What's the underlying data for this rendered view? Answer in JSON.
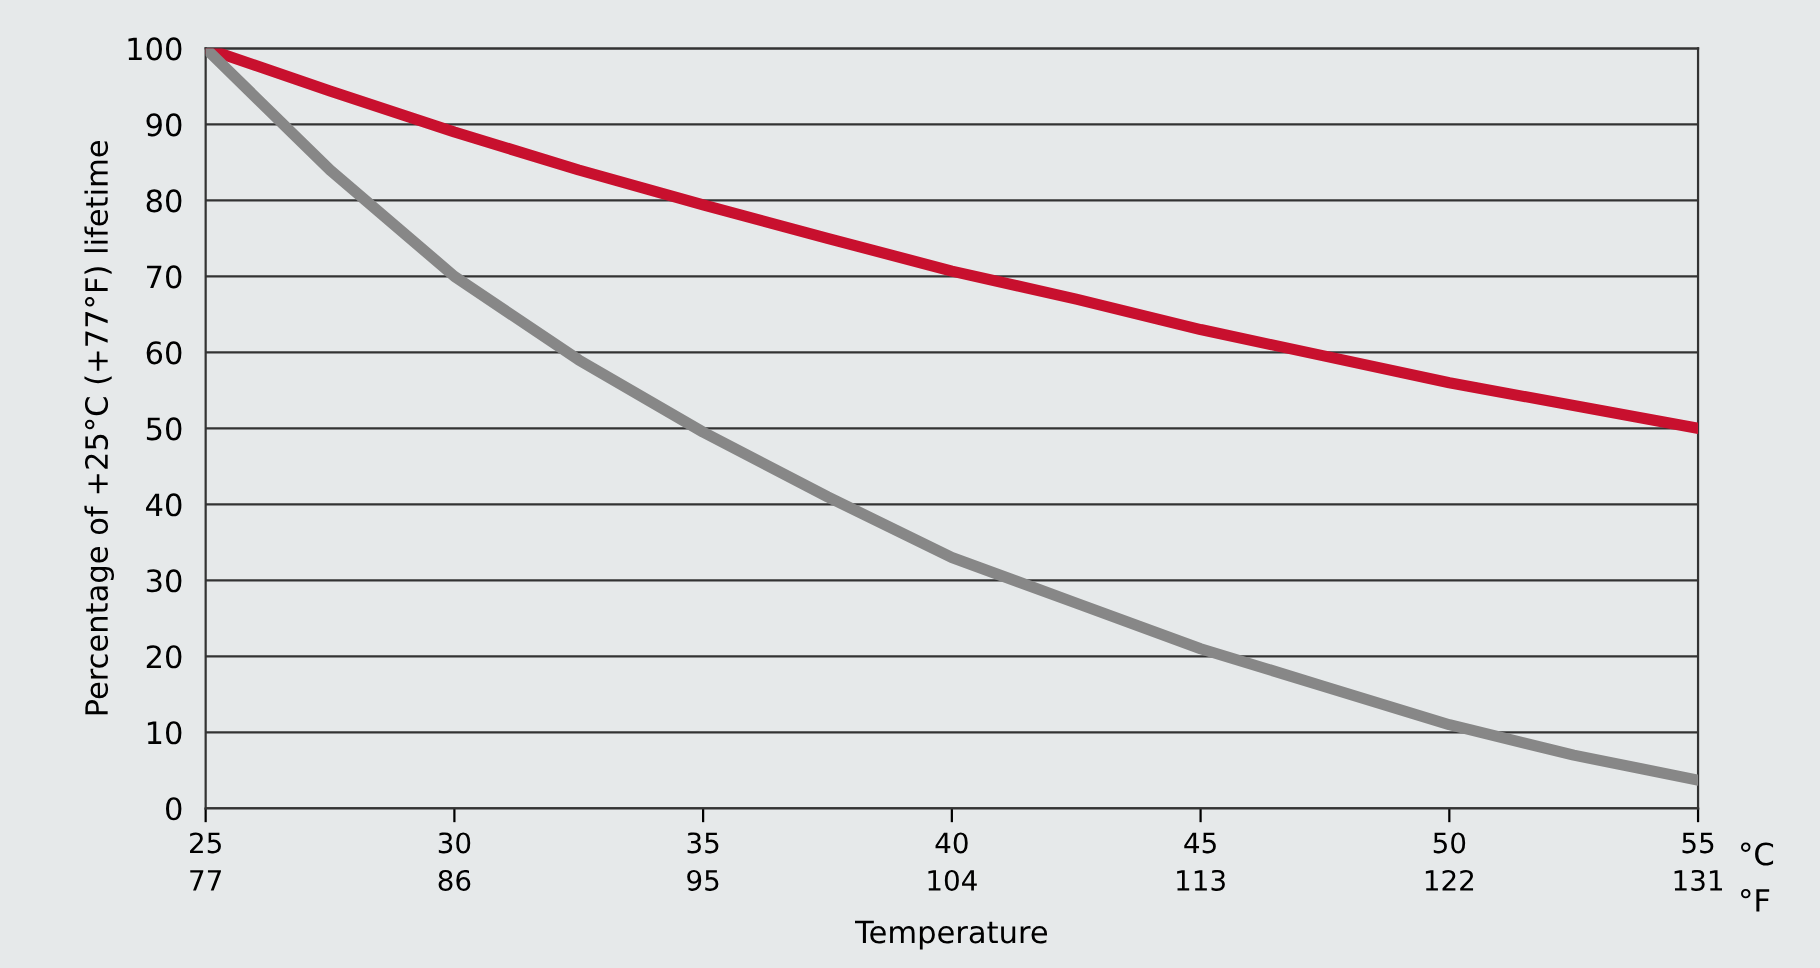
{
  "chart_data": {
    "type": "line",
    "xlabel": "Temperature",
    "ylabel": "Percentage of +25°C (+77°F) lifetime",
    "x": [
      25,
      27.5,
      30,
      32.5,
      35,
      37.5,
      40,
      42.5,
      45,
      47.5,
      50,
      52.5,
      55
    ],
    "series": [
      {
        "color": "#c8102e",
        "values": [
          100,
          94.4,
          89,
          84,
          79.4,
          75,
          70.7,
          67,
          63,
          59.5,
          56,
          53,
          50
        ]
      },
      {
        "color": "#878787",
        "values": [
          100,
          84,
          70,
          59,
          49.5,
          41,
          33,
          27,
          21,
          16,
          11,
          7,
          3.7
        ]
      }
    ],
    "xlim": [
      25,
      55
    ],
    "xticks": [
      25,
      30,
      35,
      40,
      45,
      50,
      55
    ],
    "x2lim": [
      77,
      131
    ],
    "x2ticks": [
      77,
      86,
      95,
      104,
      113,
      122,
      131
    ],
    "ylim": [
      0,
      100
    ],
    "yticks": [
      0,
      10,
      20,
      30,
      40,
      50,
      60,
      70,
      80,
      90,
      100
    ],
    "annotations": [
      "°C",
      "°F"
    ],
    "grid": "y",
    "legend": false,
    "marker": "none",
    "line_style": "solid"
  }
}
